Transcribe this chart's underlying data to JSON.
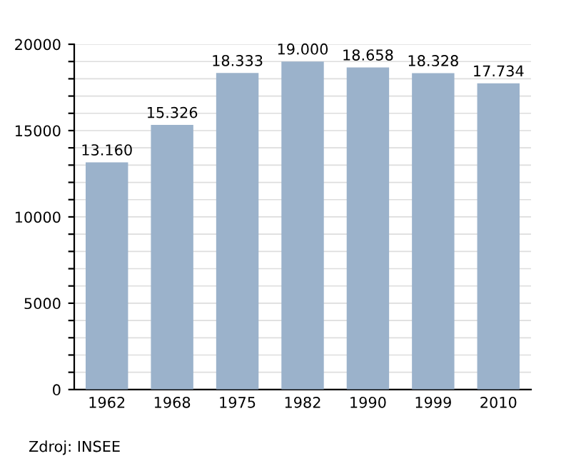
{
  "chart_data": {
    "type": "bar",
    "categories": [
      "1962",
      "1968",
      "1975",
      "1982",
      "1990",
      "1999",
      "2010"
    ],
    "values": [
      13160,
      15326,
      18333,
      19000,
      18658,
      18328,
      17734
    ],
    "value_labels": [
      "13.160",
      "15.326",
      "18.333",
      "19.000",
      "18.658",
      "18.328",
      "17.734"
    ],
    "color": "#9bb2cb",
    "ylim": [
      0,
      20000
    ],
    "yticks": [
      0,
      {
        "value": 1000,
        "label": null
      },
      {
        "value": 2000,
        "label": null
      },
      {
        "value": 3000,
        "label": null
      },
      {
        "value": 4000,
        "label": null
      },
      5000,
      {
        "value": 6000,
        "label": null
      },
      {
        "value": 7000,
        "label": null
      },
      {
        "value": 8000,
        "label": null
      },
      {
        "value": 9000,
        "label": null
      },
      10000,
      {
        "value": 11000,
        "label": null
      },
      {
        "value": 12000,
        "label": null
      },
      {
        "value": 13000,
        "label": null
      },
      {
        "value": 14000,
        "label": null
      },
      15000,
      {
        "value": 16000,
        "label": null
      },
      {
        "value": 17000,
        "label": null
      },
      {
        "value": 18000,
        "label": null
      },
      {
        "value": 19000,
        "label": null
      },
      20000
    ],
    "grid": "y",
    "annotations": [
      "Zdroj: INSEE"
    ]
  }
}
